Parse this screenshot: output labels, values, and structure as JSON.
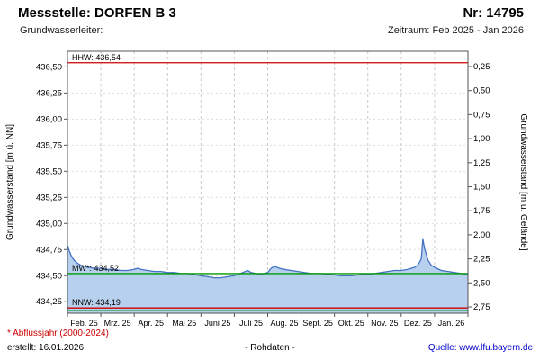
{
  "header": {
    "title": "Messstelle: DORFEN B 3",
    "number": "Nr: 14795",
    "aquifer_label": "Grundwasserleiter:",
    "period": "Zeitraum: Feb 2025 - Jan 2026"
  },
  "footer": {
    "note": "* Abflussjahr (2000-2024)",
    "created": "erstellt: 16.01.2026",
    "center": "- Rohdaten -",
    "source": "Quelle: www.lfu.bayern.de"
  },
  "chart_data": {
    "type": "line",
    "title": "Messstelle: DORFEN B 3 - Grundwasserstand Feb 2025 - Jan 2026",
    "ylabel_left": "Grundwasserstand [m ü. NN]",
    "ylabel_right": "Grundwasserstand [m u. Gelände]",
    "x_tick_labels": [
      "Feb. 25",
      "Mrz. 25",
      "Apr. 25",
      "Mai 25",
      "Juni 25",
      "Juli 25",
      "Aug. 25",
      "Sept. 25",
      "Okt. 25",
      "Nov. 25",
      "Dez. 25",
      "Jan. 26"
    ],
    "y_left_ticks": [
      436.5,
      436.25,
      436.0,
      435.75,
      435.5,
      435.25,
      435.0,
      434.75,
      434.5,
      434.25
    ],
    "y_right_ticks": [
      0.25,
      0.5,
      0.75,
      1.0,
      1.25,
      1.5,
      1.75,
      2.0,
      2.25,
      2.5,
      2.75
    ],
    "ylim_left": [
      434.14,
      436.65
    ],
    "grid": true,
    "legend_position": "none",
    "reference_lines": [
      {
        "name": "HHW",
        "label": "HHW: 436,54",
        "value": 436.54,
        "color": "#cc0000"
      },
      {
        "name": "MW",
        "label": "MW*: 434,52",
        "value": 434.52,
        "color": "#009900"
      },
      {
        "name": "NNW",
        "label": "NNW: 434,19",
        "value": 434.19,
        "color": "#cc0000"
      },
      {
        "name": "bottom-green",
        "label": "",
        "value": 434.165,
        "color": "#009900"
      }
    ],
    "series": [
      {
        "name": "Grundwasserstand Rohdaten",
        "color": "#4472c4",
        "fill": "#b7d0ee",
        "x": [
          0,
          0.05,
          0.1,
          0.15,
          0.22,
          0.3,
          0.4,
          0.5,
          0.65,
          0.8,
          1.0,
          1.2,
          1.4,
          1.6,
          1.8,
          2.0,
          2.1,
          2.2,
          2.4,
          2.6,
          2.8,
          3.0,
          3.2,
          3.4,
          3.6,
          3.8,
          4.0,
          4.2,
          4.4,
          4.6,
          4.8,
          5.0,
          5.1,
          5.25,
          5.4,
          5.5,
          5.65,
          5.8,
          5.9,
          6.0,
          6.1,
          6.2,
          6.35,
          6.5,
          6.7,
          6.9,
          7.1,
          7.3,
          7.6,
          7.9,
          8.2,
          8.5,
          8.8,
          9.0,
          9.2,
          9.4,
          9.6,
          9.8,
          10.0,
          10.2,
          10.4,
          10.5,
          10.6,
          10.65,
          10.7,
          10.8,
          10.9,
          11.0,
          11.2,
          11.4,
          11.6,
          11.8,
          11.95,
          12.0
        ],
        "y": [
          434.79,
          434.74,
          434.7,
          434.67,
          434.64,
          434.62,
          434.6,
          434.59,
          434.58,
          434.57,
          434.57,
          434.56,
          434.56,
          434.55,
          434.55,
          434.56,
          434.57,
          434.56,
          434.55,
          434.54,
          434.54,
          434.53,
          434.53,
          434.52,
          434.52,
          434.51,
          434.5,
          434.49,
          434.48,
          434.48,
          434.49,
          434.5,
          434.51,
          434.53,
          434.55,
          434.53,
          434.52,
          434.51,
          434.52,
          434.53,
          434.57,
          434.59,
          434.57,
          434.56,
          434.55,
          434.54,
          434.53,
          434.52,
          434.52,
          434.51,
          434.5,
          434.5,
          434.51,
          434.51,
          434.52,
          434.53,
          434.54,
          434.55,
          434.55,
          434.56,
          434.58,
          434.6,
          434.66,
          434.85,
          434.76,
          434.65,
          434.6,
          434.58,
          434.55,
          434.54,
          434.53,
          434.52,
          434.51,
          434.51
        ]
      }
    ]
  },
  "colors": {
    "grid": "#c9c9c9",
    "grid_h": "#dedede",
    "border": "#555555",
    "footer_note": "#cc0000",
    "source_link": "#0000cc"
  }
}
